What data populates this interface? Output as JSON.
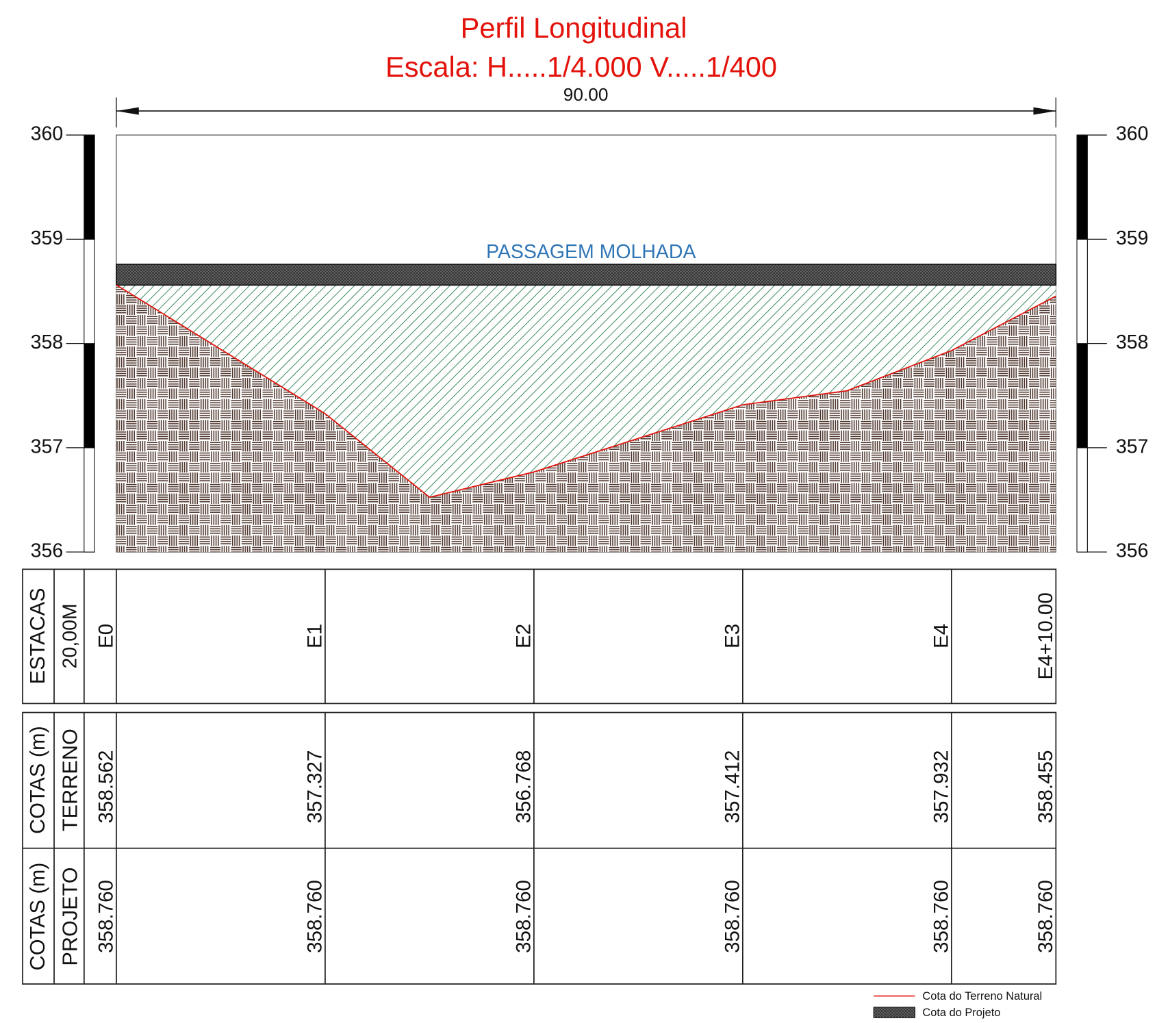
{
  "title": "Perfil Longitudinal",
  "subtitle": "Escala:  H.....1/4.000   V.....1/400",
  "dimension": {
    "value": 90,
    "label": "90.00"
  },
  "structure_label": "PASSAGEM MOLHADA",
  "profile": {
    "xlim": [
      0,
      90
    ],
    "ylim": [
      356,
      360
    ],
    "yticks": [
      356,
      357,
      358,
      359,
      360
    ],
    "terrain": {
      "x": [
        0,
        20,
        30,
        40,
        60,
        70,
        80,
        90
      ],
      "values": [
        358.562,
        357.327,
        356.525,
        356.768,
        357.412,
        357.547,
        357.932,
        358.455
      ],
      "color": "#e3120b"
    },
    "project_layer": {
      "top": 358.76,
      "bottom": 358.56
    }
  },
  "stations": {
    "header": [
      "ESTACAS",
      "20,00M"
    ],
    "x": [
      0,
      20,
      40,
      60,
      80,
      90
    ],
    "labels": [
      "E0",
      "E1",
      "E2",
      "E3",
      "E4",
      "E4+10.00"
    ]
  },
  "terrain_row": {
    "header": [
      "COTAS (m)",
      "TERRENO"
    ]
  },
  "project_row": {
    "header": [
      "COTAS (m)",
      "PROJETO"
    ],
    "labels": [
      "358.760",
      "358.760",
      "358.760",
      "358.760",
      "358.760",
      "358.760"
    ]
  },
  "legend": [
    "Cota do Terreno Natural",
    "Cota do Projeto"
  ]
}
